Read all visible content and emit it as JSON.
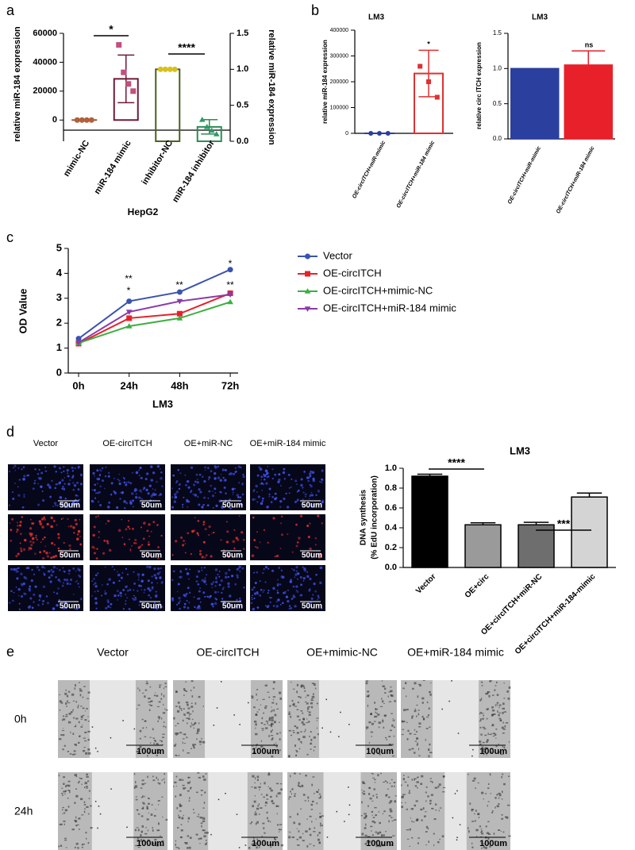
{
  "panel_labels": [
    "a",
    "b",
    "c",
    "d",
    "e"
  ],
  "chart_data": [
    {
      "type": "dotbar",
      "xlabel": "HepG2",
      "ylabel": "relative miR-184 expression",
      "y2label": "relative miR-184 expression",
      "categories": [
        "mimic-NC",
        "miR-184 mimic",
        "inhibitor-NC",
        "miR-184 inhibitor"
      ],
      "values": [
        1,
        28500,
        1.0,
        0.2
      ],
      "errors": [
        0,
        16500,
        0,
        0.1
      ],
      "axes": [
        "y",
        "y",
        "y2",
        "y2"
      ],
      "points": [
        [
          0,
          0,
          0,
          0
        ],
        [
          52000,
          33000,
          25000,
          20000
        ],
        [
          1,
          1,
          1,
          1
        ],
        [
          0.3,
          0.2,
          0.15,
          0.1
        ]
      ],
      "colors": [
        "#a0522d",
        "#6e1a35",
        "#4f5f22",
        "#2e8b57"
      ],
      "point_colors": [
        "#b0603a",
        "#c2507e",
        "#d8c020",
        "#2e9b67"
      ],
      "markers": [
        "circle",
        "square",
        "circle",
        "triangle"
      ],
      "bar_style": "outline",
      "error_bars": "both",
      "ylim": [
        -7000,
        60000
      ],
      "yticks": [
        0,
        20000,
        40000,
        60000
      ],
      "y2lim": [
        0,
        1.5
      ],
      "y2ticks": [
        {
          "value": 0,
          "label": "0.0"
        },
        {
          "value": 0.5,
          "label": "0.5"
        },
        {
          "value": 1,
          "label": "1.0"
        },
        {
          "value": 1.5,
          "label": "1.5"
        }
      ],
      "annotations": [
        "*",
        "****"
      ]
    },
    {
      "type": "dotbar",
      "title": "LM3",
      "ylabel": "relative miR-184 expression",
      "categories": [
        "OE-circITCH+miR-mimic",
        "OE-circITCH+miR-184 mimic"
      ],
      "values": [
        1,
        232000
      ],
      "errors": [
        0,
        90000
      ],
      "axes": [
        "y",
        "y"
      ],
      "points": [
        [
          0,
          0,
          0
        ],
        [
          260000,
          200000,
          140000
        ]
      ],
      "colors": [
        "#2a3f9a",
        "#e03030"
      ],
      "point_colors": [
        "#2a3f9a",
        "#e03030"
      ],
      "markers": [
        "circle",
        "square"
      ],
      "bar_style": "outline",
      "error_bars": "both",
      "ylim": [
        0,
        400000
      ],
      "yticks": [
        0,
        100000,
        200000,
        300000,
        400000
      ],
      "annotations": [
        "*"
      ]
    },
    {
      "type": "bar",
      "title": "LM3",
      "ylabel": "relative circ ITCH expression",
      "categories": [
        "OE-circITCH+miR-mimic",
        "OE-circITCH+miR-184 mimic"
      ],
      "values": [
        1.0,
        1.05
      ],
      "errors": [
        0,
        0.2
      ],
      "axes": [
        "y",
        "y"
      ],
      "colors": [
        "#2b3f9e",
        "#e8202a"
      ],
      "bar_style": "fill",
      "error_bars": "up",
      "ylim": [
        0,
        1.5
      ],
      "yticks": [
        {
          "value": 0,
          "label": "0.0"
        },
        {
          "value": 0.5,
          "label": "0.5"
        },
        {
          "value": 1,
          "label": "1.0"
        },
        {
          "value": 1.5,
          "label": "1.5"
        }
      ],
      "annotations": [
        "ns"
      ]
    },
    {
      "type": "line",
      "xlabel": "LM3",
      "ylabel": "OD Value",
      "categories": [
        "0h",
        "24h",
        "48h",
        "72h"
      ],
      "series": [
        {
          "name": "Vector",
          "color": "#3a53b0",
          "marker": "circle",
          "values": [
            1.38,
            2.88,
            3.25,
            4.15
          ]
        },
        {
          "name": "OE-circITCH",
          "color": "#e8202a",
          "marker": "square",
          "values": [
            1.18,
            2.2,
            2.38,
            3.2
          ]
        },
        {
          "name": "OE-circITCH+mimic-NC",
          "color": "#3cb040",
          "marker": "triangle",
          "values": [
            1.2,
            1.88,
            2.2,
            2.85
          ]
        },
        {
          "name": "OE-circITCH+miR-184 mimic",
          "color": "#8a3aa8",
          "marker": "triangle-down",
          "values": [
            1.22,
            2.45,
            2.88,
            3.15
          ]
        }
      ],
      "ylim": [
        0,
        5
      ],
      "yticks": [
        0,
        1,
        2,
        3,
        4,
        5
      ],
      "annotations": [
        "**",
        "*",
        "**",
        "*",
        "**"
      ]
    },
    {
      "type": "bar",
      "title": "LM3",
      "ylabel": [
        "DNA synthesis",
        "(% EdU incorporation)"
      ],
      "categories": [
        "Vector",
        "OE+circ",
        "OE+circITCH+miR-NC",
        "OE+circITCH+miR-184-mimic"
      ],
      "values": [
        0.92,
        0.43,
        0.43,
        0.71
      ],
      "errors": [
        0.02,
        0.02,
        0.025,
        0.04
      ],
      "axes": [
        "y",
        "y",
        "y",
        "y"
      ],
      "colors": [
        "#000000",
        "#9a9a9a",
        "#6e6e6e",
        "#d4d4d4"
      ],
      "bar_style": "fill",
      "error_bars": "up",
      "ylim": [
        0,
        1
      ],
      "yticks": [
        {
          "value": 0,
          "label": "0.0"
        },
        {
          "value": 0.2,
          "label": "0.2"
        },
        {
          "value": 0.4,
          "label": "0.4"
        },
        {
          "value": 0.6,
          "label": "0.6"
        },
        {
          "value": 0.8,
          "label": "0.8"
        },
        {
          "value": 1,
          "label": "1.0"
        }
      ],
      "annotations": [
        "****",
        "***"
      ]
    }
  ],
  "edu_images": {
    "columns": [
      "Vector",
      "OE-circITCH",
      "OE+miR-NC",
      "OE+miR-184 mimic"
    ],
    "scale_bar": "50um"
  },
  "wound_images": {
    "columns": [
      "Vector",
      "OE-circITCH",
      "OE+mimic-NC",
      "OE+miR-184 mimic"
    ],
    "rows": [
      "0h",
      "24h"
    ],
    "scale_bar": "100um"
  }
}
